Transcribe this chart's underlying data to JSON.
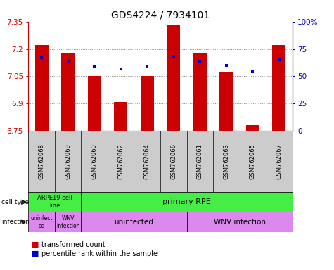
{
  "title": "GDS4224 / 7934101",
  "samples": [
    "GSM762068",
    "GSM762069",
    "GSM762060",
    "GSM762062",
    "GSM762064",
    "GSM762066",
    "GSM762061",
    "GSM762063",
    "GSM762065",
    "GSM762067"
  ],
  "transformed_counts": [
    7.22,
    7.18,
    7.05,
    6.91,
    7.05,
    7.33,
    7.18,
    7.07,
    6.78,
    7.22
  ],
  "percentile_ranks": [
    67,
    63,
    59,
    57,
    59,
    68,
    63,
    60,
    54,
    65
  ],
  "ylim_left": [
    6.75,
    7.35
  ],
  "ylim_right": [
    0,
    100
  ],
  "yticks_left": [
    6.75,
    6.9,
    7.05,
    7.2,
    7.35
  ],
  "yticks_right": [
    0,
    25,
    50,
    75,
    100
  ],
  "ytick_labels_left": [
    "6.75",
    "6.9",
    "7.05",
    "7.2",
    "7.35"
  ],
  "ytick_labels_right": [
    "0",
    "25",
    "50",
    "75",
    "100%"
  ],
  "bar_color": "#cc0000",
  "dot_color": "#0000cc",
  "bar_width": 0.5,
  "grid_yticks": [
    6.9,
    7.05,
    7.2
  ],
  "dotted_grid_color": "#888888",
  "cell_type_color": "#44ee44",
  "infection_color": "#dd88ee",
  "sample_bg_color": "#cccccc",
  "legend_labels": [
    "transformed count",
    "percentile rank within the sample"
  ],
  "legend_colors": [
    "#cc0000",
    "#0000cc"
  ]
}
